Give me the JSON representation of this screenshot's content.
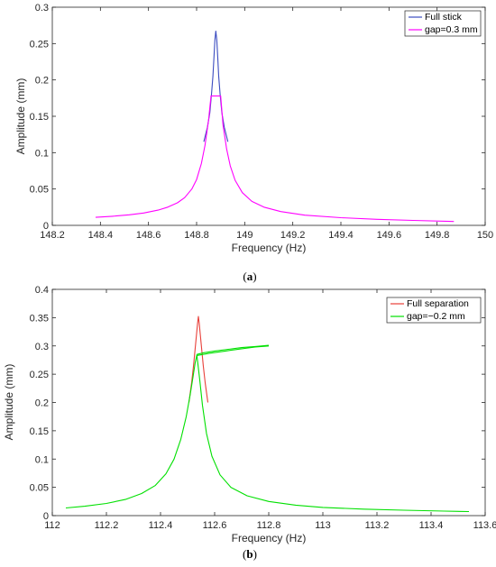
{
  "chart_data": [
    {
      "type": "line",
      "panel": "a",
      "caption_letter": "a",
      "xlabel": "Frequency (Hz)",
      "ylabel": "Amplitude (mm)",
      "xlim": [
        148.2,
        150.0
      ],
      "ylim": [
        0,
        0.3
      ],
      "xticks": [
        148.2,
        148.4,
        148.6,
        148.8,
        149,
        149.2,
        149.4,
        149.6,
        149.8,
        150
      ],
      "yticks": [
        0,
        0.05,
        0.1,
        0.15,
        0.2,
        0.25,
        0.3
      ],
      "xtick_labels": [
        "148.2",
        "148.4",
        "148.6",
        "148.8",
        "149",
        "149.2",
        "149.4",
        "149.6",
        "149.8",
        "150"
      ],
      "ytick_labels": [
        "0",
        "0.05",
        "0.1",
        "0.15",
        "0.2",
        "0.25",
        "0.3"
      ],
      "legend_position": "top-right",
      "grid": false,
      "series": [
        {
          "name": "Full stick",
          "color": "#3b4cc0",
          "x": [
            148.83,
            148.845,
            148.855,
            148.862,
            148.868,
            148.872,
            148.876,
            148.88,
            148.884,
            148.888,
            148.892,
            148.898,
            148.905,
            148.915,
            148.93
          ],
          "y": [
            0.115,
            0.135,
            0.155,
            0.18,
            0.205,
            0.23,
            0.255,
            0.267,
            0.255,
            0.23,
            0.205,
            0.18,
            0.155,
            0.135,
            0.115
          ]
        },
        {
          "name": "gap=0.3 mm",
          "color": "#ff00ff",
          "x": [
            148.38,
            148.45,
            148.52,
            148.58,
            148.64,
            148.68,
            148.72,
            148.75,
            148.78,
            148.8,
            148.82,
            148.835,
            148.85,
            148.86,
            148.868,
            148.875,
            148.88,
            148.886,
            148.893,
            148.9,
            148.91,
            148.925,
            148.94,
            148.96,
            148.99,
            149.03,
            149.08,
            149.15,
            149.25,
            149.4,
            149.55,
            149.7,
            149.87
          ],
          "y": [
            0.011,
            0.0125,
            0.0145,
            0.017,
            0.021,
            0.025,
            0.031,
            0.038,
            0.05,
            0.063,
            0.085,
            0.11,
            0.145,
            0.178,
            0.178,
            0.178,
            0.178,
            0.178,
            0.178,
            0.178,
            0.138,
            0.105,
            0.082,
            0.062,
            0.045,
            0.033,
            0.025,
            0.019,
            0.014,
            0.0105,
            0.0083,
            0.0068,
            0.0053
          ]
        }
      ]
    },
    {
      "type": "line",
      "panel": "b",
      "caption_letter": "b",
      "xlabel": "Frequency (Hz)",
      "ylabel": "Amplitude (mm)",
      "xlim": [
        112,
        113.6
      ],
      "ylim": [
        0,
        0.4
      ],
      "xticks": [
        112,
        112.2,
        112.4,
        112.6,
        112.8,
        113,
        113.2,
        113.4,
        113.6
      ],
      "yticks": [
        0,
        0.05,
        0.1,
        0.15,
        0.2,
        0.25,
        0.3,
        0.35,
        0.4
      ],
      "xtick_labels": [
        "112",
        "112.2",
        "112.4",
        "112.6",
        "112.8",
        "113",
        "113.2",
        "113.4",
        "113.6"
      ],
      "ytick_labels": [
        "0",
        "0.05",
        "0.1",
        "0.15",
        "0.2",
        "0.25",
        "0.3",
        "0.35",
        "0.4"
      ],
      "legend_position": "top-right",
      "grid": false,
      "series": [
        {
          "name": "Full separation",
          "color": "#e8403a",
          "x": [
            112.505,
            112.515,
            112.522,
            112.528,
            112.533,
            112.537,
            112.54,
            112.543,
            112.547,
            112.552,
            112.558,
            112.565,
            112.575
          ],
          "y": [
            0.2,
            0.235,
            0.265,
            0.295,
            0.32,
            0.34,
            0.352,
            0.34,
            0.32,
            0.295,
            0.265,
            0.235,
            0.2
          ]
        },
        {
          "name": "gap=−0.2 mm",
          "color": "#00e000",
          "x": [
            112.05,
            112.12,
            112.2,
            112.27,
            112.33,
            112.38,
            112.42,
            112.45,
            112.475,
            112.495,
            112.51,
            112.52,
            112.528,
            112.534,
            112.58,
            112.64,
            112.7,
            112.75,
            112.8
          ],
          "y": [
            0.0135,
            0.0165,
            0.0215,
            0.0285,
            0.039,
            0.053,
            0.074,
            0.1,
            0.135,
            0.175,
            0.215,
            0.245,
            0.27,
            0.283,
            0.287,
            0.291,
            0.295,
            0.298,
            0.3
          ]
        },
        {
          "name": "",
          "color": "#00e000",
          "x": [
            112.534,
            112.56,
            112.6,
            112.65,
            112.7,
            112.75,
            112.8
          ],
          "y": [
            0.285,
            0.288,
            0.291,
            0.294,
            0.297,
            0.299,
            0.301
          ]
        },
        {
          "name": "",
          "color": "#00e000",
          "x": [
            112.534,
            112.545,
            112.555,
            112.57,
            112.59,
            112.62,
            112.66,
            112.72,
            112.8,
            112.9,
            113.0,
            113.15,
            113.3,
            113.45,
            113.54
          ],
          "y": [
            0.285,
            0.24,
            0.195,
            0.145,
            0.105,
            0.072,
            0.05,
            0.035,
            0.025,
            0.0185,
            0.0145,
            0.0115,
            0.0095,
            0.008,
            0.0072
          ]
        }
      ]
    }
  ]
}
